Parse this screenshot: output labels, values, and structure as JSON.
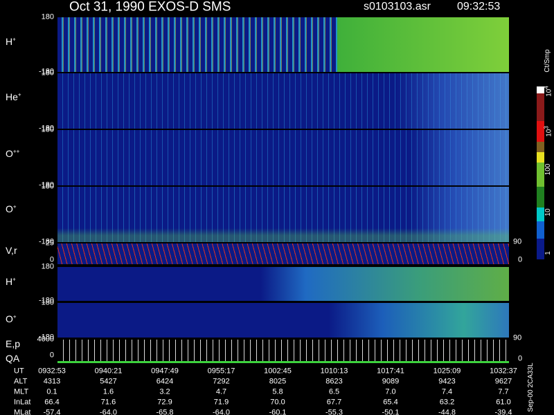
{
  "header": {
    "title": "Oct 31, 1990   EXOS-D SMS",
    "file": "s0103103.asr",
    "time": "09:32:53"
  },
  "panels": [
    {
      "label": {
        "base": "H",
        "sup": "+"
      },
      "ticks": [
        "180",
        "-180"
      ]
    },
    {
      "label": {
        "base": "He",
        "sup": "+"
      },
      "ticks": [
        "180",
        "-180"
      ]
    },
    {
      "label": {
        "base": "O",
        "sup": "++"
      },
      "ticks": [
        "180",
        "-180"
      ]
    },
    {
      "label": {
        "base": "O",
        "sup": "+"
      },
      "ticks": [
        "180",
        "-180"
      ]
    },
    {
      "label": "V,r",
      "ticks": [
        "25",
        "0"
      ],
      "right_ticks": [
        "90",
        "0"
      ]
    },
    {
      "label": {
        "base": "H",
        "sup": "+"
      },
      "ticks": [
        "180",
        "-180"
      ]
    },
    {
      "label": {
        "base": "O",
        "sup": "+"
      },
      "ticks": [
        "180",
        "-180"
      ]
    },
    {
      "label": "E,p",
      "label2": "QA",
      "ticks": [
        "4000",
        "0"
      ],
      "right_ticks": [
        "90",
        "0"
      ]
    }
  ],
  "colorbar": {
    "unit": "Ct/Smp",
    "ticks": [
      {
        "base": "10",
        "sup": "4"
      },
      {
        "base": "10",
        "sup": "3"
      },
      "100",
      "10",
      "1"
    ]
  },
  "table": {
    "rows": [
      {
        "name": "UT",
        "cells": [
          "0932:53",
          "0940:21",
          "0947:49",
          "0955:17",
          "1002:45",
          "1010:13",
          "1017:41",
          "1025:09",
          "1032:37"
        ]
      },
      {
        "name": "ALT",
        "cells": [
          "4313",
          "5427",
          "6424",
          "7292",
          "8025",
          "8623",
          "9089",
          "9423",
          "9627"
        ]
      },
      {
        "name": "MLT",
        "cells": [
          "0.1",
          "1.6",
          "3.2",
          "4.7",
          "5.8",
          "6.5",
          "7.0",
          "7.4",
          "7.7"
        ]
      },
      {
        "name": "InLat",
        "cells": [
          "66.4",
          "71.6",
          "72.9",
          "71.9",
          "70.0",
          "67.7",
          "65.4",
          "63.2",
          "61.0"
        ]
      },
      {
        "name": "MLat",
        "cells": [
          "-57.4",
          "-64.0",
          "-65.8",
          "-64.0",
          "-60.1",
          "-55.3",
          "-50.1",
          "-44.8",
          "-39.4"
        ]
      }
    ]
  },
  "footer": "Sep-00 2CA33L"
}
